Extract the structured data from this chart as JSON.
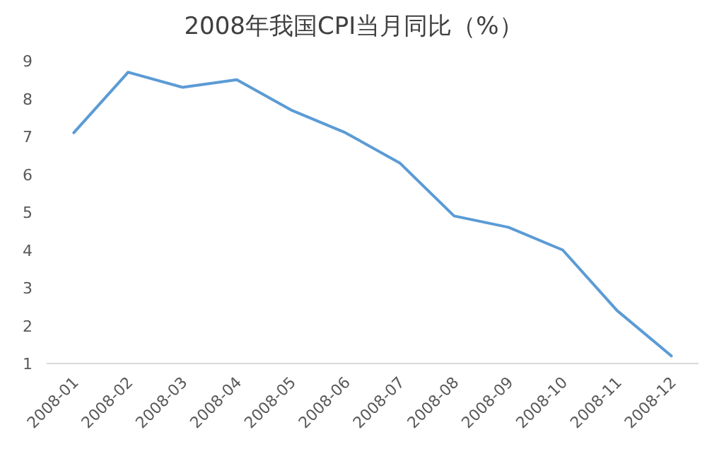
{
  "chart_data": {
    "type": "line",
    "title": "2008年我国CPI当月同比（%）",
    "categories": [
      "2008-01",
      "2008-02",
      "2008-03",
      "2008-04",
      "2008-05",
      "2008-06",
      "2008-07",
      "2008-08",
      "2008-09",
      "2008-10",
      "2008-11",
      "2008-12"
    ],
    "values": [
      7.1,
      8.7,
      8.3,
      8.5,
      7.7,
      7.1,
      6.3,
      4.9,
      4.6,
      4.0,
      2.4,
      1.2
    ],
    "color": "#5b9bd5",
    "ylim": [
      1,
      9
    ],
    "yticks": [
      1,
      2,
      3,
      4,
      5,
      6,
      7,
      8,
      9
    ],
    "marker": "none",
    "line_style": "solid"
  }
}
